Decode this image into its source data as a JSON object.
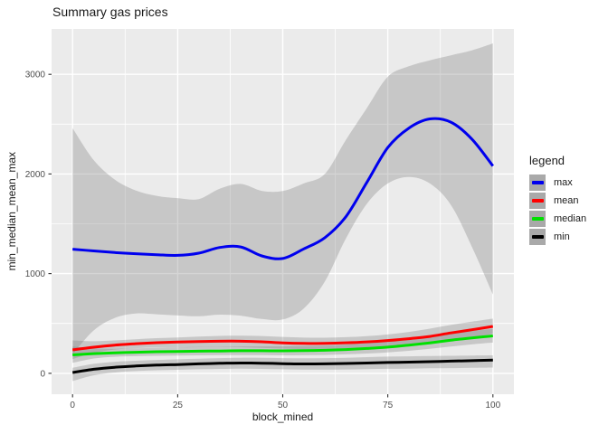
{
  "chart_data": {
    "type": "line",
    "title": "Summary gas prices",
    "xlabel": "block_mined",
    "ylabel": "min_median_mean_max",
    "legend_title": "legend",
    "legend_position": "right",
    "grid": true,
    "panel_bg": "#ebebeb",
    "grid_color": "#ffffff",
    "ribbon_color": "rgba(118,118,118,0.31)",
    "axis_text_color": "#4d4d4d",
    "tick_color": "#333333",
    "x_domain": [
      -5,
      105
    ],
    "y_domain": [
      -210,
      3455
    ],
    "x_ticks": [
      0,
      25,
      50,
      75,
      100
    ],
    "y_ticks": [
      0,
      1000,
      2000,
      3000
    ],
    "x_minor_ticks": [
      12.5,
      37.5,
      62.5,
      87.5
    ],
    "y_minor_ticks": [
      500,
      1500,
      2500
    ],
    "x": [
      0,
      5,
      10,
      15,
      20,
      25,
      30,
      35,
      40,
      45,
      50,
      55,
      60,
      65,
      70,
      75,
      80,
      85,
      90,
      95,
      100
    ],
    "series": [
      {
        "name": "max",
        "color": "#0000ee",
        "values": [
          1245,
          1228,
          1212,
          1200,
          1190,
          1183,
          1205,
          1262,
          1268,
          1178,
          1152,
          1248,
          1360,
          1570,
          1915,
          2265,
          2460,
          2552,
          2520,
          2350,
          2080
        ],
        "lower": [
          190,
          430,
          555,
          600,
          592,
          580,
          572,
          588,
          578,
          545,
          540,
          650,
          920,
          1350,
          1700,
          1905,
          1970,
          1905,
          1690,
          1270,
          790
        ],
        "upper": [
          2460,
          2140,
          1945,
          1835,
          1780,
          1758,
          1748,
          1852,
          1900,
          1830,
          1828,
          1905,
          2000,
          2340,
          2660,
          2975,
          3080,
          3140,
          3190,
          3240,
          3310
        ]
      },
      {
        "name": "mean",
        "color": "#ff0000",
        "values": [
          235,
          262,
          283,
          297,
          307,
          313,
          318,
          322,
          322,
          316,
          305,
          300,
          301,
          306,
          315,
          329,
          347,
          370,
          405,
          437,
          470
        ],
        "lower": [
          142,
          205,
          238,
          252,
          258,
          260,
          262,
          265,
          262,
          255,
          247,
          243,
          245,
          250,
          258,
          268,
          282,
          300,
          330,
          362,
          395
        ],
        "upper": [
          330,
          322,
          330,
          342,
          352,
          360,
          368,
          375,
          378,
          374,
          365,
          358,
          357,
          362,
          372,
          390,
          415,
          448,
          485,
          518,
          548
        ]
      },
      {
        "name": "median",
        "color": "#00e000",
        "values": [
          185,
          197,
          205,
          211,
          216,
          219,
          222,
          224,
          226,
          226,
          225,
          227,
          231,
          238,
          249,
          263,
          282,
          305,
          332,
          355,
          375
        ],
        "lower": [
          105,
          148,
          166,
          172,
          176,
          178,
          180,
          182,
          183,
          182,
          180,
          181,
          184,
          190,
          198,
          210,
          225,
          245,
          268,
          290,
          308
        ],
        "upper": [
          268,
          250,
          246,
          250,
          255,
          260,
          264,
          267,
          269,
          270,
          270,
          273,
          278,
          287,
          300,
          318,
          342,
          370,
          400,
          425,
          445
        ]
      },
      {
        "name": "min",
        "color": "#000000",
        "values": [
          8,
          40,
          60,
          73,
          82,
          88,
          95,
          100,
          103,
          101,
          97,
          94,
          95,
          98,
          103,
          108,
          112,
          117,
          122,
          127,
          132
        ],
        "lower": [
          -78,
          -20,
          8,
          22,
          30,
          35,
          40,
          44,
          46,
          44,
          40,
          37,
          37,
          39,
          42,
          45,
          47,
          50,
          52,
          55,
          58
        ],
        "upper": [
          55,
          95,
          115,
          126,
          134,
          140,
          146,
          152,
          156,
          155,
          152,
          150,
          152,
          156,
          162,
          167,
          170,
          173,
          176,
          178,
          180
        ]
      }
    ]
  }
}
